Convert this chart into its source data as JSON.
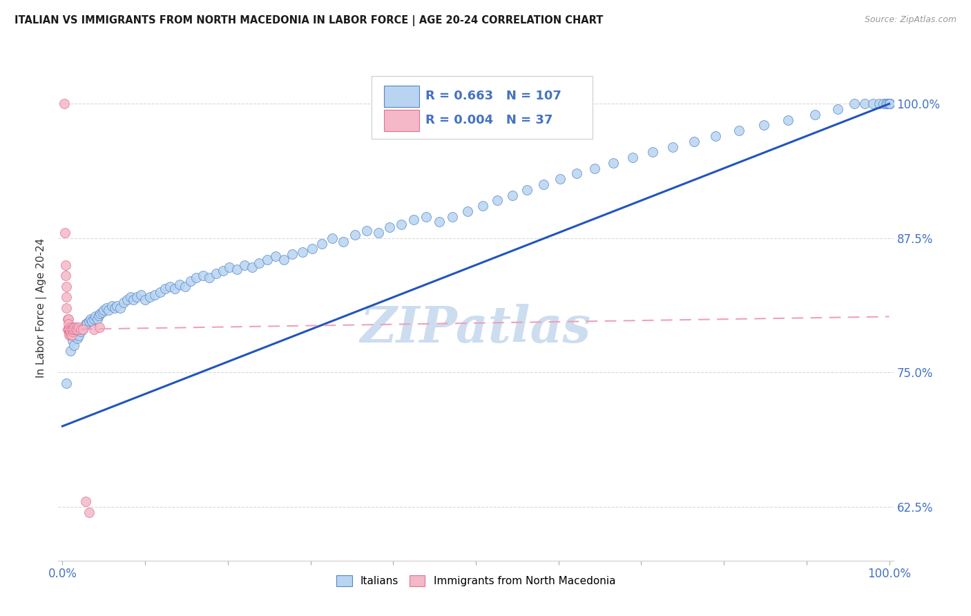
{
  "title": "ITALIAN VS IMMIGRANTS FROM NORTH MACEDONIA IN LABOR FORCE | AGE 20-24 CORRELATION CHART",
  "source": "Source: ZipAtlas.com",
  "ylabel": "In Labor Force | Age 20-24",
  "yticks": [
    0.625,
    0.75,
    0.875,
    1.0
  ],
  "ytick_labels": [
    "62.5%",
    "75.0%",
    "87.5%",
    "100.0%"
  ],
  "xlim": [
    -0.005,
    1.005
  ],
  "ylim": [
    0.575,
    1.045
  ],
  "legend_italian_R": "0.663",
  "legend_italian_N": "107",
  "legend_macedonian_R": "0.004",
  "legend_macedonian_N": "37",
  "italian_color": "#b8d4f0",
  "macedonian_color": "#f4b8c8",
  "italian_edge_color": "#5585c8",
  "macedonian_edge_color": "#e07090",
  "italian_line_color": "#2255bb",
  "macedonian_line_color": "#f0a0b8",
  "watermark": "ZIPatlas",
  "italian_scatter_x": [
    0.005,
    0.01,
    0.012,
    0.014,
    0.016,
    0.018,
    0.02,
    0.022,
    0.024,
    0.026,
    0.028,
    0.03,
    0.032,
    0.034,
    0.036,
    0.038,
    0.04,
    0.042,
    0.044,
    0.046,
    0.048,
    0.05,
    0.053,
    0.056,
    0.06,
    0.063,
    0.066,
    0.07,
    0.074,
    0.078,
    0.082,
    0.086,
    0.09,
    0.095,
    0.1,
    0.106,
    0.112,
    0.118,
    0.124,
    0.13,
    0.136,
    0.142,
    0.148,
    0.155,
    0.162,
    0.17,
    0.178,
    0.186,
    0.194,
    0.202,
    0.211,
    0.22,
    0.229,
    0.238,
    0.248,
    0.258,
    0.268,
    0.278,
    0.29,
    0.302,
    0.314,
    0.326,
    0.34,
    0.354,
    0.368,
    0.382,
    0.396,
    0.41,
    0.425,
    0.44,
    0.456,
    0.472,
    0.49,
    0.508,
    0.526,
    0.544,
    0.562,
    0.582,
    0.602,
    0.622,
    0.644,
    0.666,
    0.69,
    0.714,
    0.738,
    0.764,
    0.79,
    0.818,
    0.848,
    0.878,
    0.91,
    0.938,
    0.958,
    0.97,
    0.98,
    0.988,
    0.993,
    0.996,
    0.998,
    1.0,
    1.0,
    1.0,
    1.0,
    1.0,
    1.0,
    1.0,
    1.0
  ],
  "italian_scatter_y": [
    0.74,
    0.77,
    0.78,
    0.775,
    0.785,
    0.782,
    0.784,
    0.788,
    0.79,
    0.792,
    0.795,
    0.796,
    0.798,
    0.8,
    0.798,
    0.8,
    0.802,
    0.8,
    0.803,
    0.805,
    0.806,
    0.808,
    0.81,
    0.808,
    0.812,
    0.81,
    0.812,
    0.81,
    0.815,
    0.818,
    0.82,
    0.818,
    0.82,
    0.822,
    0.818,
    0.82,
    0.822,
    0.825,
    0.828,
    0.83,
    0.828,
    0.832,
    0.83,
    0.835,
    0.838,
    0.84,
    0.838,
    0.842,
    0.845,
    0.848,
    0.846,
    0.85,
    0.848,
    0.852,
    0.855,
    0.858,
    0.855,
    0.86,
    0.862,
    0.865,
    0.87,
    0.875,
    0.872,
    0.878,
    0.882,
    0.88,
    0.885,
    0.888,
    0.892,
    0.895,
    0.89,
    0.895,
    0.9,
    0.905,
    0.91,
    0.915,
    0.92,
    0.925,
    0.93,
    0.935,
    0.94,
    0.945,
    0.95,
    0.955,
    0.96,
    0.965,
    0.97,
    0.975,
    0.98,
    0.985,
    0.99,
    0.995,
    1.0,
    1.0,
    1.0,
    1.0,
    1.0,
    1.0,
    1.0,
    1.0,
    1.0,
    1.0,
    1.0,
    1.0,
    1.0,
    1.0,
    1.0
  ],
  "macedonian_scatter_x": [
    0.002,
    0.003,
    0.004,
    0.004,
    0.005,
    0.005,
    0.005,
    0.006,
    0.006,
    0.007,
    0.007,
    0.007,
    0.008,
    0.008,
    0.008,
    0.009,
    0.009,
    0.01,
    0.01,
    0.01,
    0.011,
    0.011,
    0.012,
    0.012,
    0.013,
    0.014,
    0.015,
    0.016,
    0.017,
    0.018,
    0.02,
    0.022,
    0.025,
    0.028,
    0.032,
    0.038,
    0.045
  ],
  "macedonian_scatter_y": [
    1.0,
    0.88,
    0.85,
    0.84,
    0.83,
    0.82,
    0.81,
    0.8,
    0.79,
    0.8,
    0.795,
    0.79,
    0.788,
    0.785,
    0.79,
    0.792,
    0.788,
    0.79,
    0.785,
    0.788,
    0.79,
    0.785,
    0.788,
    0.79,
    0.792,
    0.79,
    0.792,
    0.79,
    0.792,
    0.79,
    0.792,
    0.79,
    0.79,
    0.63,
    0.62,
    0.79,
    0.792
  ],
  "italian_trend_x": [
    0.0,
    1.0
  ],
  "italian_trend_y": [
    0.7,
    1.0
  ],
  "macedonian_trend_x": [
    0.0,
    1.0
  ],
  "macedonian_trend_y": [
    0.79,
    0.802
  ],
  "background_color": "#ffffff",
  "grid_color": "#d8d8d8",
  "title_color": "#1a1a1a",
  "axis_label_color": "#4472c4",
  "watermark_color": "#ccddf0",
  "legend_box_color": "#ffffff",
  "legend_border_color": "#cccccc"
}
